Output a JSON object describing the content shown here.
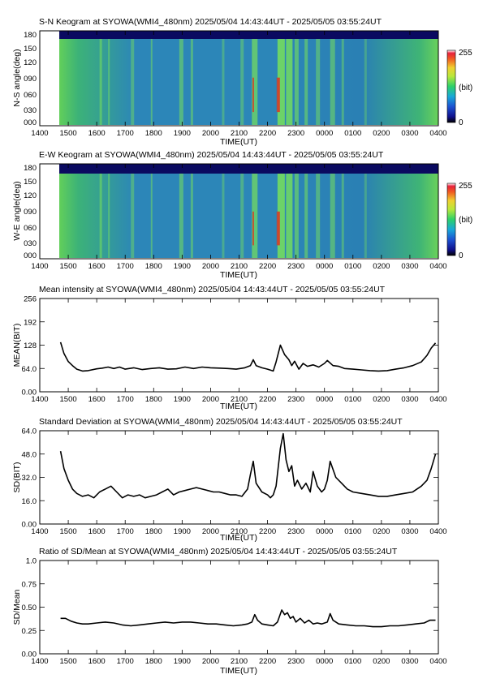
{
  "time_axis": {
    "label": "TIME(UT)",
    "ticks": [
      "1400",
      "1500",
      "1600",
      "1700",
      "1800",
      "1900",
      "2000",
      "2100",
      "2200",
      "2300",
      "0000",
      "0100",
      "0200",
      "0300",
      "0400"
    ]
  },
  "keogram_sn": {
    "title": "S-N Keogram at SYOWA(WMI4_480nm)   2025/05/04 14:43:44UT - 2025/05/05 03:55:24UT",
    "ylabel": "N-S angle(deg)",
    "yticks": [
      "180",
      "150",
      "120",
      "090",
      "060",
      "030",
      "000"
    ],
    "colorbar": {
      "max": "255",
      "unit": "(bit)",
      "min": "0"
    }
  },
  "keogram_ew": {
    "title": "E-W Keogram at SYOWA(WMI4_480nm)   2025/05/04 14:43:44UT - 2025/05/05 03:55:24UT",
    "ylabel": "W-E angle(deg)",
    "yticks": [
      "180",
      "150",
      "120",
      "090",
      "060",
      "030",
      "000"
    ],
    "colorbar": {
      "max": "255",
      "unit": "(bit)",
      "min": "0"
    }
  },
  "colors": {
    "line": "#000000",
    "sky": "#2e7fb8",
    "aurora": "#78e05a",
    "bright": "#e03020"
  },
  "chart_data": [
    {
      "type": "line",
      "title": "Mean intensity at SYOWA(WMI4_480nm)   2025/05/04 14:43:44UT - 2025/05/05 03:55:24UT",
      "xlabel": "TIME(UT)",
      "ylabel": "MEAN(BIT)",
      "xlim": [
        14,
        28
      ],
      "ylim": [
        0,
        256
      ],
      "yticks": [
        "0.00",
        "64.0",
        "128",
        "192",
        "256"
      ],
      "x": [
        14.73,
        14.85,
        15.0,
        15.15,
        15.3,
        15.5,
        15.7,
        16.0,
        16.2,
        16.4,
        16.6,
        16.8,
        17.0,
        17.3,
        17.6,
        17.9,
        18.2,
        18.5,
        18.8,
        19.1,
        19.4,
        19.7,
        20.0,
        20.3,
        20.6,
        20.9,
        21.2,
        21.4,
        21.5,
        21.6,
        21.8,
        22.0,
        22.2,
        22.3,
        22.45,
        22.6,
        22.75,
        22.85,
        22.95,
        23.1,
        23.25,
        23.4,
        23.6,
        23.8,
        24.0,
        24.1,
        24.3,
        24.5,
        24.7,
        25.0,
        25.3,
        25.6,
        25.9,
        26.2,
        26.5,
        26.8,
        27.1,
        27.4,
        27.6,
        27.75,
        27.9
      ],
      "y": [
        136,
        105,
        83,
        72,
        62,
        57,
        58,
        63,
        65,
        68,
        64,
        68,
        62,
        66,
        61,
        64,
        66,
        62,
        63,
        68,
        64,
        68,
        66,
        65,
        64,
        62,
        66,
        72,
        88,
        72,
        66,
        62,
        57,
        82,
        128,
        102,
        88,
        72,
        84,
        62,
        78,
        70,
        74,
        68,
        78,
        86,
        72,
        70,
        64,
        62,
        60,
        58,
        57,
        58,
        62,
        66,
        72,
        82,
        100,
        120,
        134
      ]
    },
    {
      "type": "line",
      "title": "Standard Deviation at SYOWA(WMI4_480nm)   2025/05/04 14:43:44UT - 2025/05/05 03:55:24UT",
      "xlabel": "TIME(UT)",
      "ylabel": "SD(BIT)",
      "xlim": [
        14,
        28
      ],
      "ylim": [
        0,
        64
      ],
      "yticks": [
        "0.00",
        "16.0",
        "32.0",
        "48.0",
        "64.0"
      ],
      "x": [
        14.73,
        14.85,
        15.0,
        15.15,
        15.3,
        15.5,
        15.7,
        15.9,
        16.1,
        16.3,
        16.5,
        16.7,
        16.9,
        17.1,
        17.3,
        17.5,
        17.7,
        17.9,
        18.1,
        18.3,
        18.5,
        18.7,
        18.9,
        19.1,
        19.3,
        19.5,
        19.7,
        19.9,
        20.1,
        20.3,
        20.5,
        20.7,
        20.9,
        21.1,
        21.3,
        21.4,
        21.5,
        21.6,
        21.8,
        22.0,
        22.1,
        22.2,
        22.3,
        22.45,
        22.55,
        22.65,
        22.75,
        22.85,
        22.95,
        23.05,
        23.2,
        23.35,
        23.5,
        23.6,
        23.75,
        23.9,
        24.0,
        24.1,
        24.2,
        24.4,
        24.6,
        24.8,
        25.0,
        25.3,
        25.6,
        25.9,
        26.2,
        26.5,
        26.8,
        27.1,
        27.4,
        27.6,
        27.75,
        27.9
      ],
      "y": [
        50,
        38,
        30,
        24,
        21,
        19,
        20,
        18,
        22,
        24,
        26,
        22,
        18,
        20,
        19,
        20,
        18,
        19,
        20,
        22,
        24,
        20,
        22,
        23,
        24,
        25,
        24,
        23,
        22,
        22,
        21,
        20,
        20,
        19,
        24,
        34,
        43,
        28,
        22,
        20,
        18,
        20,
        26,
        52,
        62,
        44,
        36,
        40,
        26,
        30,
        24,
        28,
        22,
        36,
        26,
        22,
        24,
        30,
        43,
        32,
        28,
        24,
        22,
        21,
        20,
        19,
        19,
        20,
        21,
        22,
        26,
        30,
        38,
        48
      ]
    },
    {
      "type": "line",
      "title": "Ratio of SD/Mean at SYOWA(WMI4_480nm)   2025/05/04 14:43:44UT - 2025/05/05 03:55:24UT",
      "xlabel": "TIME(UT)",
      "ylabel": "SD/Mean",
      "xlim": [
        14,
        28
      ],
      "ylim": [
        0,
        1
      ],
      "yticks": [
        "0.00",
        "0.25",
        "0.50",
        "0.75",
        "1.0"
      ],
      "x": [
        14.73,
        14.9,
        15.1,
        15.3,
        15.5,
        15.7,
        16.0,
        16.3,
        16.6,
        16.9,
        17.2,
        17.5,
        17.8,
        18.1,
        18.4,
        18.7,
        19.0,
        19.3,
        19.6,
        19.9,
        20.2,
        20.5,
        20.8,
        21.1,
        21.3,
        21.45,
        21.55,
        21.65,
        21.8,
        22.0,
        22.2,
        22.35,
        22.5,
        22.6,
        22.7,
        22.8,
        22.9,
        23.0,
        23.15,
        23.3,
        23.45,
        23.6,
        23.75,
        23.9,
        24.1,
        24.2,
        24.3,
        24.5,
        24.8,
        25.1,
        25.4,
        25.7,
        26.0,
        26.3,
        26.6,
        26.9,
        27.2,
        27.5,
        27.7,
        27.9
      ],
      "y": [
        0.38,
        0.38,
        0.35,
        0.33,
        0.32,
        0.32,
        0.33,
        0.34,
        0.33,
        0.31,
        0.3,
        0.31,
        0.32,
        0.33,
        0.34,
        0.33,
        0.34,
        0.34,
        0.33,
        0.32,
        0.32,
        0.31,
        0.3,
        0.31,
        0.32,
        0.34,
        0.42,
        0.36,
        0.32,
        0.31,
        0.3,
        0.34,
        0.47,
        0.42,
        0.44,
        0.38,
        0.4,
        0.34,
        0.38,
        0.33,
        0.36,
        0.32,
        0.33,
        0.32,
        0.34,
        0.43,
        0.36,
        0.32,
        0.31,
        0.3,
        0.3,
        0.29,
        0.29,
        0.3,
        0.3,
        0.31,
        0.32,
        0.33,
        0.36,
        0.36
      ]
    }
  ]
}
